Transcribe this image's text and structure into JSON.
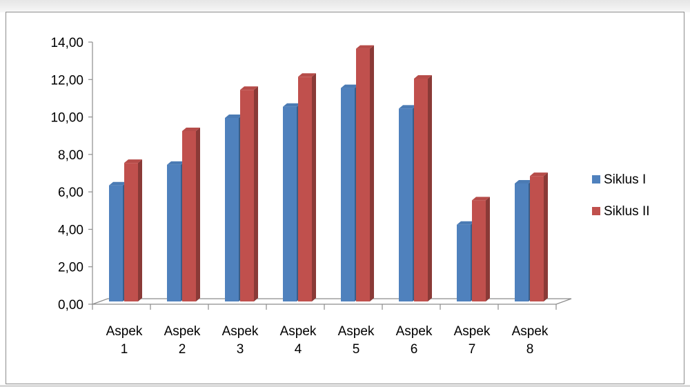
{
  "chart_data": {
    "type": "bar",
    "categories": [
      [
        "Aspek",
        "1"
      ],
      [
        "Aspek",
        "2"
      ],
      [
        "Aspek",
        "3"
      ],
      [
        "Aspek",
        "4"
      ],
      [
        "Aspek",
        "5"
      ],
      [
        "Aspek",
        "6"
      ],
      [
        "Aspek",
        "7"
      ],
      [
        "Aspek",
        "8"
      ]
    ],
    "series": [
      {
        "name": "Siklus I",
        "color": "#4f81bd",
        "values": [
          6.2,
          7.3,
          9.8,
          10.4,
          11.4,
          10.3,
          4.1,
          6.3
        ]
      },
      {
        "name": "Siklus II",
        "color": "#c0504d",
        "values": [
          7.4,
          9.1,
          11.3,
          12.0,
          13.5,
          11.9,
          5.4,
          6.7
        ]
      }
    ],
    "y_ticks": [
      "0,00",
      "2,00",
      "4,00",
      "6,00",
      "8,00",
      "10,00",
      "12,00",
      "14,00"
    ],
    "ylim": [
      0,
      14
    ],
    "y_step": 2,
    "grid": false,
    "legend": "right",
    "style": "3d-column"
  }
}
